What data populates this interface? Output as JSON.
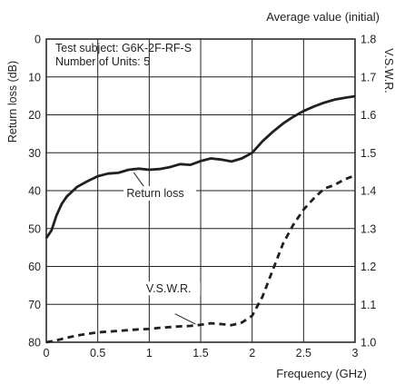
{
  "chart_data": {
    "type": "line",
    "title": "Average value (initial)",
    "annotations": [
      "Test subject: G6K-2F-RF-S",
      "Number of Units: 5"
    ],
    "xlabel": "Frequency (GHz)",
    "ylabel_left": "Return loss (dB)",
    "ylabel_right": "V.S.W.R.",
    "xlim": [
      0,
      3
    ],
    "ylim_left": [
      0,
      80
    ],
    "ylim_left_inverted": true,
    "ylim_right": [
      1.0,
      1.8
    ],
    "x_ticks": [
      "0",
      "0.5",
      "1",
      "1.5",
      "2",
      "2.5",
      "3"
    ],
    "y_left_ticks": [
      "0",
      "10",
      "20",
      "30",
      "40",
      "50",
      "60",
      "70",
      "80"
    ],
    "y_right_ticks": [
      "1.0",
      "1.1",
      "1.2",
      "1.3",
      "1.4",
      "1.5",
      "1.6",
      "1.7",
      "1.8"
    ],
    "grid": true,
    "series": [
      {
        "name": "Return loss",
        "axis": "left",
        "line_style": "solid",
        "color": "#231f20",
        "x": [
          0,
          0.05,
          0.1,
          0.15,
          0.2,
          0.3,
          0.4,
          0.5,
          0.6,
          0.7,
          0.8,
          0.9,
          1.0,
          1.1,
          1.2,
          1.3,
          1.4,
          1.5,
          1.6,
          1.7,
          1.8,
          1.9,
          2.0,
          2.1,
          2.2,
          2.3,
          2.4,
          2.5,
          2.6,
          2.7,
          2.8,
          2.9,
          3.0
        ],
        "y": [
          52.5,
          50.5,
          46.5,
          43.5,
          41.5,
          39,
          37.5,
          36.2,
          35.5,
          35.3,
          34.5,
          34.2,
          34.5,
          34.3,
          33.8,
          33,
          33.2,
          32.2,
          31.5,
          31.8,
          32.3,
          31.5,
          30,
          27,
          24.5,
          22.3,
          20.5,
          19,
          17.8,
          16.8,
          16,
          15.5,
          15.1
        ]
      },
      {
        "name": "V.S.W.R.",
        "axis": "right",
        "line_style": "dashed",
        "color": "#231f20",
        "x": [
          0,
          0.1,
          0.2,
          0.3,
          0.4,
          0.5,
          0.6,
          0.7,
          0.8,
          0.9,
          1.0,
          1.1,
          1.2,
          1.3,
          1.4,
          1.5,
          1.6,
          1.7,
          1.8,
          1.9,
          2.0,
          2.1,
          2.2,
          2.3,
          2.4,
          2.5,
          2.6,
          2.7,
          2.8,
          2.9,
          3.0
        ],
        "y": [
          1.0,
          1.005,
          1.012,
          1.018,
          1.022,
          1.026,
          1.028,
          1.03,
          1.032,
          1.034,
          1.035,
          1.038,
          1.04,
          1.042,
          1.043,
          1.046,
          1.05,
          1.048,
          1.045,
          1.052,
          1.07,
          1.12,
          1.19,
          1.26,
          1.31,
          1.35,
          1.38,
          1.405,
          1.415,
          1.43,
          1.44
        ]
      }
    ],
    "series_labels": [
      "Return loss",
      "V.S.W.R."
    ]
  }
}
